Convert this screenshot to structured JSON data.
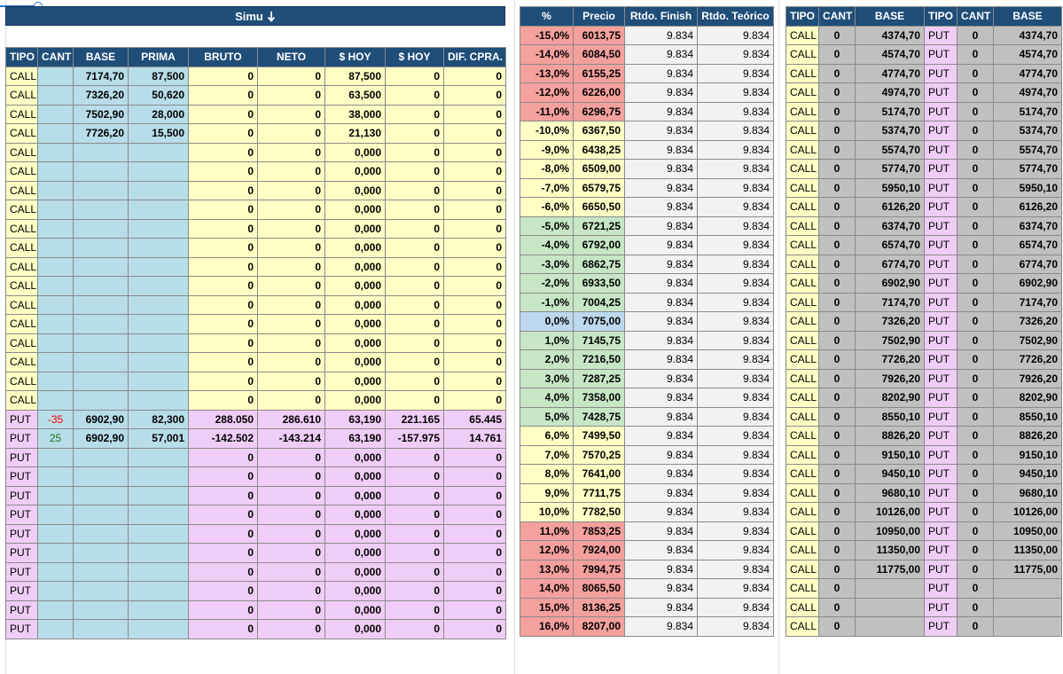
{
  "simu": {
    "title": "Simu",
    "sort_icon": "sort-desc-icon"
  },
  "left": {
    "headers": [
      "TIPO",
      "CANT",
      "BASE",
      "PRIMA",
      "BRUTO",
      "NETO",
      "$ HOY",
      "$ HOY",
      "DIF. CPRA."
    ],
    "rows": [
      [
        "CALL",
        "",
        "7174,70",
        "87,500",
        "0",
        "0",
        "87,500",
        "0",
        "0"
      ],
      [
        "CALL",
        "",
        "7326,20",
        "50,620",
        "0",
        "0",
        "63,500",
        "0",
        "0"
      ],
      [
        "CALL",
        "",
        "7502,90",
        "28,000",
        "0",
        "0",
        "38,000",
        "0",
        "0"
      ],
      [
        "CALL",
        "",
        "7726,20",
        "15,500",
        "0",
        "0",
        "21,130",
        "0",
        "0"
      ],
      [
        "CALL",
        "",
        "",
        "",
        "0",
        "0",
        "0,000",
        "0",
        "0"
      ],
      [
        "CALL",
        "",
        "",
        "",
        "0",
        "0",
        "0,000",
        "0",
        "0"
      ],
      [
        "CALL",
        "",
        "",
        "",
        "0",
        "0",
        "0,000",
        "0",
        "0"
      ],
      [
        "CALL",
        "",
        "",
        "",
        "0",
        "0",
        "0,000",
        "0",
        "0"
      ],
      [
        "CALL",
        "",
        "",
        "",
        "0",
        "0",
        "0,000",
        "0",
        "0"
      ],
      [
        "CALL",
        "",
        "",
        "",
        "0",
        "0",
        "0,000",
        "0",
        "0"
      ],
      [
        "CALL",
        "",
        "",
        "",
        "0",
        "0",
        "0,000",
        "0",
        "0"
      ],
      [
        "CALL",
        "",
        "",
        "",
        "0",
        "0",
        "0,000",
        "0",
        "0"
      ],
      [
        "CALL",
        "",
        "",
        "",
        "0",
        "0",
        "0,000",
        "0",
        "0"
      ],
      [
        "CALL",
        "",
        "",
        "",
        "0",
        "0",
        "0,000",
        "0",
        "0"
      ],
      [
        "CALL",
        "",
        "",
        "",
        "0",
        "0",
        "0,000",
        "0",
        "0"
      ],
      [
        "CALL",
        "",
        "",
        "",
        "0",
        "0",
        "0,000",
        "0",
        "0"
      ],
      [
        "CALL",
        "",
        "",
        "",
        "0",
        "0",
        "0,000",
        "0",
        "0"
      ],
      [
        "CALL",
        "",
        "",
        "",
        "0",
        "0",
        "0,000",
        "0",
        "0"
      ],
      [
        "PUT",
        "-35",
        "6902,90",
        "82,300",
        "288.050",
        "286.610",
        "63,190",
        "221.165",
        "65.445"
      ],
      [
        "PUT",
        "25",
        "6902,90",
        "57,001",
        "-142.502",
        "-143.214",
        "63,190",
        "-157.975",
        "14.761"
      ],
      [
        "PUT",
        "",
        "",
        "",
        "0",
        "0",
        "0,000",
        "0",
        "0"
      ],
      [
        "PUT",
        "",
        "",
        "",
        "0",
        "0",
        "0,000",
        "0",
        "0"
      ],
      [
        "PUT",
        "",
        "",
        "",
        "0",
        "0",
        "0,000",
        "0",
        "0"
      ],
      [
        "PUT",
        "",
        "",
        "",
        "0",
        "0",
        "0,000",
        "0",
        "0"
      ],
      [
        "PUT",
        "",
        "",
        "",
        "0",
        "0",
        "0,000",
        "0",
        "0"
      ],
      [
        "PUT",
        "",
        "",
        "",
        "0",
        "0",
        "0,000",
        "0",
        "0"
      ],
      [
        "PUT",
        "",
        "",
        "",
        "0",
        "0",
        "0,000",
        "0",
        "0"
      ],
      [
        "PUT",
        "",
        "",
        "",
        "0",
        "0",
        "0,000",
        "0",
        "0"
      ],
      [
        "PUT",
        "",
        "",
        "",
        "0",
        "0",
        "0,000",
        "0",
        "0"
      ],
      [
        "PUT",
        "",
        "",
        "",
        "0",
        "0",
        "0,000",
        "0",
        "0"
      ]
    ]
  },
  "middle": {
    "headers": [
      "%",
      "Precio",
      "Rtdo. Finish",
      "Rtdo. Teórico"
    ],
    "rows": [
      [
        "-15,0%",
        "6013,75",
        "9.834",
        "9.834"
      ],
      [
        "-14,0%",
        "6084,50",
        "9.834",
        "9.834"
      ],
      [
        "-13,0%",
        "6155,25",
        "9.834",
        "9.834"
      ],
      [
        "-12,0%",
        "6226,00",
        "9.834",
        "9.834"
      ],
      [
        "-11,0%",
        "6296,75",
        "9.834",
        "9.834"
      ],
      [
        "-10,0%",
        "6367,50",
        "9.834",
        "9.834"
      ],
      [
        "-9,0%",
        "6438,25",
        "9.834",
        "9.834"
      ],
      [
        "-8,0%",
        "6509,00",
        "9.834",
        "9.834"
      ],
      [
        "-7,0%",
        "6579,75",
        "9.834",
        "9.834"
      ],
      [
        "-6,0%",
        "6650,50",
        "9.834",
        "9.834"
      ],
      [
        "-5,0%",
        "6721,25",
        "9.834",
        "9.834"
      ],
      [
        "-4,0%",
        "6792,00",
        "9.834",
        "9.834"
      ],
      [
        "-3,0%",
        "6862,75",
        "9.834",
        "9.834"
      ],
      [
        "-2,0%",
        "6933,50",
        "9.834",
        "9.834"
      ],
      [
        "-1,0%",
        "7004,25",
        "9.834",
        "9.834"
      ],
      [
        "0,0%",
        "7075,00",
        "9.834",
        "9.834"
      ],
      [
        "1,0%",
        "7145,75",
        "9.834",
        "9.834"
      ],
      [
        "2,0%",
        "7216,50",
        "9.834",
        "9.834"
      ],
      [
        "3,0%",
        "7287,25",
        "9.834",
        "9.834"
      ],
      [
        "4,0%",
        "7358,00",
        "9.834",
        "9.834"
      ],
      [
        "5,0%",
        "7428,75",
        "9.834",
        "9.834"
      ],
      [
        "6,0%",
        "7499,50",
        "9.834",
        "9.834"
      ],
      [
        "7,0%",
        "7570,25",
        "9.834",
        "9.834"
      ],
      [
        "8,0%",
        "7641,00",
        "9.834",
        "9.834"
      ],
      [
        "9,0%",
        "7711,75",
        "9.834",
        "9.834"
      ],
      [
        "10,0%",
        "7782,50",
        "9.834",
        "9.834"
      ],
      [
        "11,0%",
        "7853,25",
        "9.834",
        "9.834"
      ],
      [
        "12,0%",
        "7924,00",
        "9.834",
        "9.834"
      ],
      [
        "13,0%",
        "7994,75",
        "9.834",
        "9.834"
      ],
      [
        "14,0%",
        "8065,50",
        "9.834",
        "9.834"
      ],
      [
        "15,0%",
        "8136,25",
        "9.834",
        "9.834"
      ],
      [
        "16,0%",
        "8207,00",
        "9.834",
        "9.834"
      ]
    ]
  },
  "right": {
    "headers": [
      "TIPO",
      "CANT",
      "BASE",
      "TIPO",
      "CANT",
      "BASE"
    ],
    "rows": [
      [
        "CALL",
        "0",
        "4374,70",
        "PUT",
        "0",
        "4374,70"
      ],
      [
        "CALL",
        "0",
        "4574,70",
        "PUT",
        "0",
        "4574,70"
      ],
      [
        "CALL",
        "0",
        "4774,70",
        "PUT",
        "0",
        "4774,70"
      ],
      [
        "CALL",
        "0",
        "4974,70",
        "PUT",
        "0",
        "4974,70"
      ],
      [
        "CALL",
        "0",
        "5174,70",
        "PUT",
        "0",
        "5174,70"
      ],
      [
        "CALL",
        "0",
        "5374,70",
        "PUT",
        "0",
        "5374,70"
      ],
      [
        "CALL",
        "0",
        "5574,70",
        "PUT",
        "0",
        "5574,70"
      ],
      [
        "CALL",
        "0",
        "5774,70",
        "PUT",
        "0",
        "5774,70"
      ],
      [
        "CALL",
        "0",
        "5950,10",
        "PUT",
        "0",
        "5950,10"
      ],
      [
        "CALL",
        "0",
        "6126,20",
        "PUT",
        "0",
        "6126,20"
      ],
      [
        "CALL",
        "0",
        "6374,70",
        "PUT",
        "0",
        "6374,70"
      ],
      [
        "CALL",
        "0",
        "6574,70",
        "PUT",
        "0",
        "6574,70"
      ],
      [
        "CALL",
        "0",
        "6774,70",
        "PUT",
        "0",
        "6774,70"
      ],
      [
        "CALL",
        "0",
        "6902,90",
        "PUT",
        "0",
        "6902,90"
      ],
      [
        "CALL",
        "0",
        "7174,70",
        "PUT",
        "0",
        "7174,70"
      ],
      [
        "CALL",
        "0",
        "7326,20",
        "PUT",
        "0",
        "7326,20"
      ],
      [
        "CALL",
        "0",
        "7502,90",
        "PUT",
        "0",
        "7502,90"
      ],
      [
        "CALL",
        "0",
        "7726,20",
        "PUT",
        "0",
        "7726,20"
      ],
      [
        "CALL",
        "0",
        "7926,20",
        "PUT",
        "0",
        "7926,20"
      ],
      [
        "CALL",
        "0",
        "8202,90",
        "PUT",
        "0",
        "8202,90"
      ],
      [
        "CALL",
        "0",
        "8550,10",
        "PUT",
        "0",
        "8550,10"
      ],
      [
        "CALL",
        "0",
        "8826,20",
        "PUT",
        "0",
        "8826,20"
      ],
      [
        "CALL",
        "0",
        "9150,10",
        "PUT",
        "0",
        "9150,10"
      ],
      [
        "CALL",
        "0",
        "9450,10",
        "PUT",
        "0",
        "9450,10"
      ],
      [
        "CALL",
        "0",
        "9680,10",
        "PUT",
        "0",
        "9680,10"
      ],
      [
        "CALL",
        "0",
        "10126,00",
        "PUT",
        "0",
        "10126,00"
      ],
      [
        "CALL",
        "0",
        "10950,00",
        "PUT",
        "0",
        "10950,00"
      ],
      [
        "CALL",
        "0",
        "11350,00",
        "PUT",
        "0",
        "11350,00"
      ],
      [
        "CALL",
        "0",
        "11775,00",
        "PUT",
        "0",
        "11775,00"
      ],
      [
        "CALL",
        "0",
        "",
        "PUT",
        "0",
        ""
      ],
      [
        "CALL",
        "0",
        "",
        "PUT",
        "0",
        ""
      ],
      [
        "CALL",
        "0",
        "",
        "PUT",
        "0",
        ""
      ]
    ]
  }
}
